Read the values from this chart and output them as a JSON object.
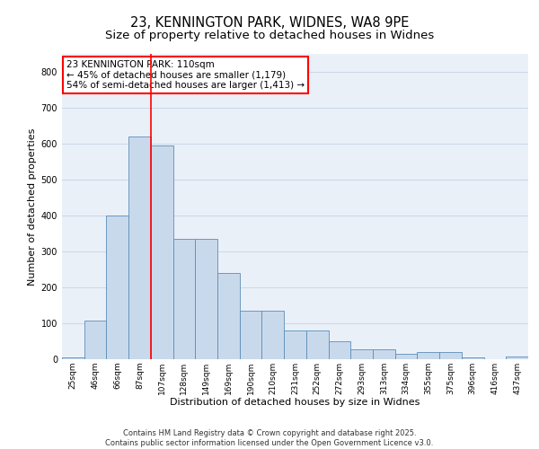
{
  "title_line1": "23, KENNINGTON PARK, WIDNES, WA8 9PE",
  "title_line2": "Size of property relative to detached houses in Widnes",
  "xlabel": "Distribution of detached houses by size in Widnes",
  "ylabel": "Number of detached properties",
  "categories": [
    "25sqm",
    "46sqm",
    "66sqm",
    "87sqm",
    "107sqm",
    "128sqm",
    "149sqm",
    "169sqm",
    "190sqm",
    "210sqm",
    "231sqm",
    "252sqm",
    "272sqm",
    "293sqm",
    "313sqm",
    "334sqm",
    "355sqm",
    "375sqm",
    "396sqm",
    "416sqm",
    "437sqm"
  ],
  "values": [
    5,
    108,
    400,
    620,
    595,
    335,
    335,
    240,
    135,
    135,
    80,
    80,
    50,
    27,
    27,
    15,
    20,
    20,
    5,
    0,
    8
  ],
  "bar_color": "#c9d9ec",
  "bar_edge_color": "#5b8db8",
  "vline_color": "red",
  "vline_x_index": 4,
  "annotation_text": "23 KENNINGTON PARK: 110sqm\n← 45% of detached houses are smaller (1,179)\n54% of semi-detached houses are larger (1,413) →",
  "annotation_box_color": "white",
  "annotation_box_edge_color": "red",
  "ylim": [
    0,
    850
  ],
  "yticks": [
    0,
    100,
    200,
    300,
    400,
    500,
    600,
    700,
    800
  ],
  "grid_color": "#c8d8e8",
  "bg_color": "#eaf0f8",
  "footer": "Contains HM Land Registry data © Crown copyright and database right 2025.\nContains public sector information licensed under the Open Government Licence v3.0.",
  "title_fontsize": 10.5,
  "subtitle_fontsize": 9.5,
  "axis_label_fontsize": 8,
  "tick_fontsize": 7,
  "annotation_fontsize": 7.5,
  "footer_fontsize": 6
}
